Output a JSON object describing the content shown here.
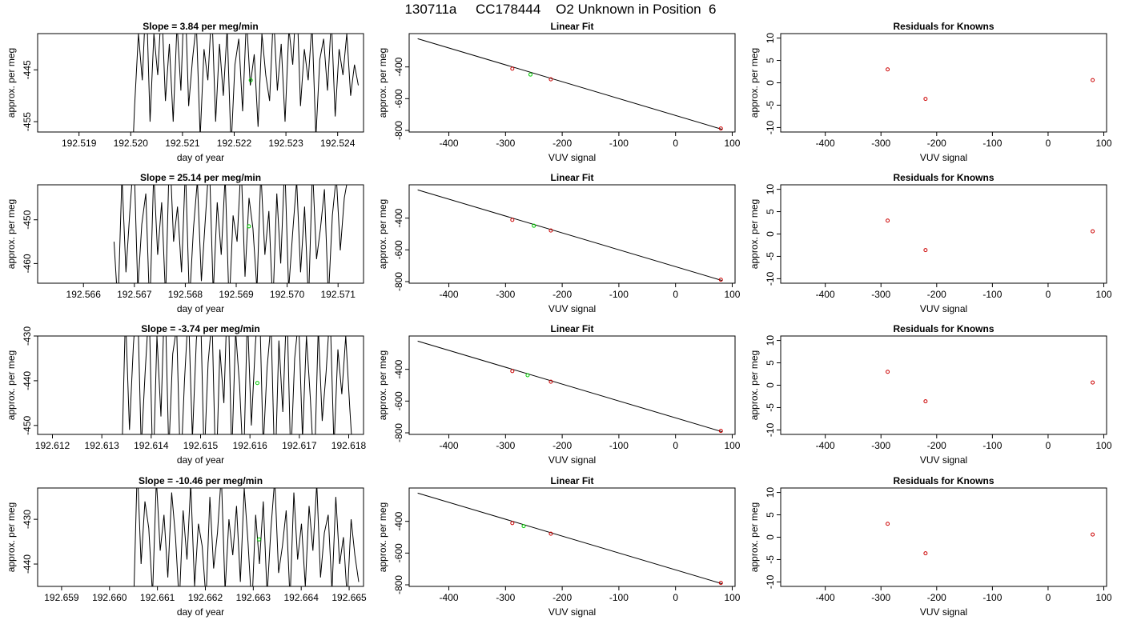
{
  "title": "130711a     CC178444    O2 Unknown in Position  6",
  "colors": {
    "line": "#000000",
    "known_point": "#cc0000",
    "unknown_point": "#00cc00",
    "axis": "#000000"
  },
  "chart_data": [
    {
      "type": "line",
      "title": "Slope =  3.84  per meg/min",
      "xlabel": "day of year",
      "ylabel": "approx. per meg",
      "xlim": [
        192.5182,
        192.5245
      ],
      "ylim": [
        -457,
        -438
      ],
      "xticks": [
        192.519,
        192.52,
        192.521,
        192.522,
        192.523,
        192.524
      ],
      "xtick_labels": [
        "192.519",
        "192.520",
        "192.521",
        "192.522",
        "192.523",
        "192.524"
      ],
      "yticks": [
        -445,
        -455
      ],
      "ytick_labels": [
        "-445",
        "-455"
      ],
      "series": [
        {
          "x_start": 192.52,
          "x_end": 192.5244,
          "y_min": -457,
          "y_max": -438,
          "values": [
            -470,
            -452,
            -438,
            -447,
            -430,
            -455,
            -438,
            -446,
            -432,
            -451,
            -440,
            -455,
            -436,
            -449,
            -428,
            -452,
            -443,
            -436,
            -458,
            -441,
            -447,
            -433,
            -455,
            -440,
            -450,
            -437,
            -460,
            -444,
            -439,
            -453,
            -435,
            -448,
            -442,
            -456,
            -438,
            -446,
            -451,
            -434,
            -449,
            -440,
            -455,
            -437,
            -444,
            -430,
            -452,
            -441,
            -447,
            -436,
            -458,
            -443,
            -439,
            -449,
            -435,
            -454,
            -441,
            -446,
            -438,
            -450,
            -444,
            -448
          ]
        }
      ],
      "unknown_points": [
        {
          "x": 192.52232,
          "y": -447
        }
      ]
    },
    {
      "type": "line",
      "title": "Slope =  25.14  per meg/min",
      "xlabel": "day of year",
      "ylabel": "approx. per meg",
      "xlim": [
        192.5651,
        192.5715
      ],
      "ylim": [
        -464.5,
        -442
      ],
      "xticks": [
        192.566,
        192.567,
        192.568,
        192.569,
        192.57,
        192.571
      ],
      "xtick_labels": [
        "192.566",
        "192.567",
        "192.568",
        "192.569",
        "192.570",
        "192.571"
      ],
      "yticks": [
        -450,
        -460
      ],
      "ytick_labels": [
        "-450",
        "-460"
      ],
      "series": [
        {
          "x_start": 192.5666,
          "x_end": 192.5712,
          "y_min": -464.5,
          "y_max": -442,
          "values": [
            -455,
            -470,
            -440,
            -462,
            -448,
            -435,
            -466,
            -451,
            -444,
            -471,
            -439,
            -458,
            -446,
            -468,
            -433,
            -455,
            -447,
            -462,
            -438,
            -469,
            -452,
            -441,
            -464,
            -450,
            -436,
            -467,
            -446,
            -458,
            -440,
            -470,
            -449,
            -455,
            -437,
            -463,
            -445,
            -452,
            -466,
            -439,
            -458,
            -448,
            -470,
            -444,
            -460,
            -437,
            -466,
            -453,
            -441,
            -462,
            -447,
            -469,
            -438,
            -459,
            -452,
            -443,
            -468,
            -449,
            -440,
            -457,
            -445,
            -440
          ]
        }
      ],
      "unknown_points": [
        {
          "x": 192.56925,
          "y": -451.5
        }
      ]
    },
    {
      "type": "line",
      "title": "Slope =  -3.74  per meg/min",
      "xlabel": "day of year",
      "ylabel": "approx. per meg",
      "xlim": [
        192.6117,
        192.6183
      ],
      "ylim": [
        -452,
        -430
      ],
      "xticks": [
        192.612,
        192.613,
        192.614,
        192.615,
        192.616,
        192.617,
        192.618
      ],
      "xtick_labels": [
        "192.612",
        "192.613",
        "192.614",
        "192.615",
        "192.616",
        "192.617",
        "192.618"
      ],
      "yticks": [
        -430,
        -440,
        -450
      ],
      "ytick_labels": [
        "-430",
        "-440",
        "-450"
      ],
      "series": [
        {
          "x_start": 192.6134,
          "x_end": 192.6181,
          "y_min": -452,
          "y_max": -430,
          "values": [
            -460,
            -425,
            -451,
            -432,
            -420,
            -455,
            -438,
            -423,
            -462,
            -430,
            -448,
            -419,
            -456,
            -434,
            -428,
            -461,
            -440,
            -424,
            -453,
            -431,
            -421,
            -458,
            -436,
            -426,
            -463,
            -433,
            -445,
            -418,
            -457,
            -429,
            -441,
            -460,
            -425,
            -450,
            -432,
            -420,
            -455,
            -437,
            -427,
            -462,
            -431,
            -447,
            -422,
            -458,
            -435,
            -426,
            -453,
            -430,
            -444,
            -461,
            -428,
            -449,
            -438,
            -424,
            -455,
            -433,
            -443,
            -430,
            -446,
            -460
          ]
        }
      ],
      "unknown_points": [
        {
          "x": 192.61615,
          "y": -440.5
        }
      ]
    },
    {
      "type": "line",
      "title": "Slope =  -10.46  per meg/min",
      "xlabel": "day of year",
      "ylabel": "approx. per meg",
      "xlim": [
        192.6585,
        192.6653
      ],
      "ylim": [
        -445,
        -423
      ],
      "xticks": [
        192.659,
        192.66,
        192.661,
        192.662,
        192.663,
        192.664,
        192.665
      ],
      "xtick_labels": [
        "192.659",
        "192.660",
        "192.661",
        "192.662",
        "192.663",
        "192.664",
        "192.665"
      ],
      "yticks": [
        -430,
        -440
      ],
      "ytick_labels": [
        "-430",
        "-440"
      ],
      "series": [
        {
          "x_start": 192.6605,
          "x_end": 192.6652,
          "y_min": -445,
          "y_max": -423,
          "values": [
            -450,
            -418,
            -440,
            -426,
            -432,
            -447,
            -421,
            -437,
            -429,
            -443,
            -424,
            -434,
            -449,
            -428,
            -439,
            -422,
            -445,
            -431,
            -436,
            -448,
            -425,
            -441,
            -433,
            -420,
            -446,
            -430,
            -438,
            -427,
            -444,
            -423,
            -435,
            -450,
            -429,
            -440,
            -426,
            -447,
            -432,
            -421,
            -442,
            -436,
            -428,
            -448,
            -424,
            -439,
            -431,
            -445,
            -427,
            -437,
            -422,
            -443,
            -433,
            -429,
            -446,
            -425,
            -440,
            -434,
            -448,
            -430,
            -438,
            -444
          ]
        }
      ],
      "unknown_points": [
        {
          "x": 192.66312,
          "y": -434.5
        }
      ]
    },
    {
      "type": "scatter",
      "title": "Linear Fit",
      "xlabel": "VUV signal",
      "ylabel": "approx. per meg",
      "xlim": [
        -470,
        105
      ],
      "ylim": [
        -810,
        -190
      ],
      "xticks": [
        -400,
        -300,
        -200,
        -100,
        0,
        100
      ],
      "xtick_labels": [
        "-400",
        "-300",
        "-200",
        "-100",
        "0",
        "100"
      ],
      "yticks": [
        -400,
        -600,
        -800
      ],
      "ytick_labels": [
        "-400",
        "-600",
        "-800"
      ],
      "fit_line": [
        {
          "x": -455,
          "y": -222
        },
        {
          "x": 82,
          "y": -793
        }
      ],
      "known_points": [
        {
          "x": -288,
          "y": -411
        },
        {
          "x": -220,
          "y": -478
        },
        {
          "x": 80,
          "y": -788
        }
      ],
      "unknown_points": [
        {
          "x": -256,
          "y": -448
        }
      ]
    },
    {
      "type": "scatter",
      "title": "Linear Fit",
      "xlabel": "VUV signal",
      "ylabel": "approx. per meg",
      "xlim": [
        -470,
        105
      ],
      "ylim": [
        -810,
        -190
      ],
      "xticks": [
        -400,
        -300,
        -200,
        -100,
        0,
        100
      ],
      "xtick_labels": [
        "-400",
        "-300",
        "-200",
        "-100",
        "0",
        "100"
      ],
      "yticks": [
        -400,
        -600,
        -800
      ],
      "ytick_labels": [
        "-400",
        "-600",
        "-800"
      ],
      "fit_line": [
        {
          "x": -455,
          "y": -222
        },
        {
          "x": 82,
          "y": -793
        }
      ],
      "known_points": [
        {
          "x": -288,
          "y": -411
        },
        {
          "x": -220,
          "y": -478
        },
        {
          "x": 80,
          "y": -788
        }
      ],
      "unknown_points": [
        {
          "x": -250,
          "y": -448
        }
      ]
    },
    {
      "type": "scatter",
      "title": "Linear Fit",
      "xlabel": "VUV signal",
      "ylabel": "approx. per meg",
      "xlim": [
        -470,
        105
      ],
      "ylim": [
        -810,
        -190
      ],
      "xticks": [
        -400,
        -300,
        -200,
        -100,
        0,
        100
      ],
      "xtick_labels": [
        "-400",
        "-300",
        "-200",
        "-100",
        "0",
        "100"
      ],
      "yticks": [
        -400,
        -600,
        -800
      ],
      "ytick_labels": [
        "-400",
        "-600",
        "-800"
      ],
      "fit_line": [
        {
          "x": -455,
          "y": -222
        },
        {
          "x": 82,
          "y": -793
        }
      ],
      "known_points": [
        {
          "x": -288,
          "y": -411
        },
        {
          "x": -220,
          "y": -478
        },
        {
          "x": 80,
          "y": -788
        }
      ],
      "unknown_points": [
        {
          "x": -261,
          "y": -437
        }
      ]
    },
    {
      "type": "scatter",
      "title": "Linear Fit",
      "xlabel": "VUV signal",
      "ylabel": "approx. per meg",
      "xlim": [
        -470,
        105
      ],
      "ylim": [
        -810,
        -190
      ],
      "xticks": [
        -400,
        -300,
        -200,
        -100,
        0,
        100
      ],
      "xtick_labels": [
        "-400",
        "-300",
        "-200",
        "-100",
        "0",
        "100"
      ],
      "yticks": [
        -400,
        -600,
        -800
      ],
      "ytick_labels": [
        "-400",
        "-600",
        "-800"
      ],
      "fit_line": [
        {
          "x": -455,
          "y": -222
        },
        {
          "x": 82,
          "y": -793
        }
      ],
      "known_points": [
        {
          "x": -288,
          "y": -411
        },
        {
          "x": -220,
          "y": -478
        },
        {
          "x": 80,
          "y": -788
        }
      ],
      "unknown_points": [
        {
          "x": -268,
          "y": -430
        }
      ]
    },
    {
      "type": "scatter",
      "title": "Residuals for Knowns",
      "xlabel": "VUV signal",
      "ylabel": "approx. per meg",
      "xlim": [
        -480,
        105
      ],
      "ylim": [
        -11,
        11
      ],
      "xticks": [
        -400,
        -300,
        -200,
        -100,
        0,
        100
      ],
      "xtick_labels": [
        "-400",
        "-300",
        "-200",
        "-100",
        "0",
        "100"
      ],
      "yticks": [
        10,
        5,
        0,
        -5,
        -10
      ],
      "ytick_labels": [
        "10",
        "5",
        "0",
        "-5",
        "-10"
      ],
      "known_points": [
        {
          "x": -288,
          "y": 3.0
        },
        {
          "x": -220,
          "y": -3.6
        },
        {
          "x": 80,
          "y": 0.6
        }
      ]
    },
    {
      "type": "scatter",
      "title": "Residuals for Knowns",
      "xlabel": "VUV signal",
      "ylabel": "approx. per meg",
      "xlim": [
        -480,
        105
      ],
      "ylim": [
        -11,
        11
      ],
      "xticks": [
        -400,
        -300,
        -200,
        -100,
        0,
        100
      ],
      "xtick_labels": [
        "-400",
        "-300",
        "-200",
        "-100",
        "0",
        "100"
      ],
      "yticks": [
        10,
        5,
        0,
        -5,
        -10
      ],
      "ytick_labels": [
        "10",
        "5",
        "0",
        "-5",
        "-10"
      ],
      "known_points": [
        {
          "x": -288,
          "y": 3.0
        },
        {
          "x": -220,
          "y": -3.6
        },
        {
          "x": 80,
          "y": 0.6
        }
      ]
    },
    {
      "type": "scatter",
      "title": "Residuals for Knowns",
      "xlabel": "VUV signal",
      "ylabel": "approx. per meg",
      "xlim": [
        -480,
        105
      ],
      "ylim": [
        -11,
        11
      ],
      "xticks": [
        -400,
        -300,
        -200,
        -100,
        0,
        100
      ],
      "xtick_labels": [
        "-400",
        "-300",
        "-200",
        "-100",
        "0",
        "100"
      ],
      "yticks": [
        10,
        5,
        0,
        -5,
        -10
      ],
      "ytick_labels": [
        "10",
        "5",
        "0",
        "-5",
        "-10"
      ],
      "known_points": [
        {
          "x": -288,
          "y": 3.0
        },
        {
          "x": -220,
          "y": -3.6
        },
        {
          "x": 80,
          "y": 0.6
        }
      ]
    },
    {
      "type": "scatter",
      "title": "Residuals for Knowns",
      "xlabel": "VUV signal",
      "ylabel": "approx. per meg",
      "xlim": [
        -480,
        105
      ],
      "ylim": [
        -11,
        11
      ],
      "xticks": [
        -400,
        -300,
        -200,
        -100,
        0,
        100
      ],
      "xtick_labels": [
        "-400",
        "-300",
        "-200",
        "-100",
        "0",
        "100"
      ],
      "yticks": [
        10,
        5,
        0,
        -5,
        -10
      ],
      "ytick_labels": [
        "10",
        "5",
        "0",
        "-5",
        "-10"
      ],
      "known_points": [
        {
          "x": -288,
          "y": 3.0
        },
        {
          "x": -220,
          "y": -3.6
        },
        {
          "x": 80,
          "y": 0.6
        }
      ]
    }
  ]
}
